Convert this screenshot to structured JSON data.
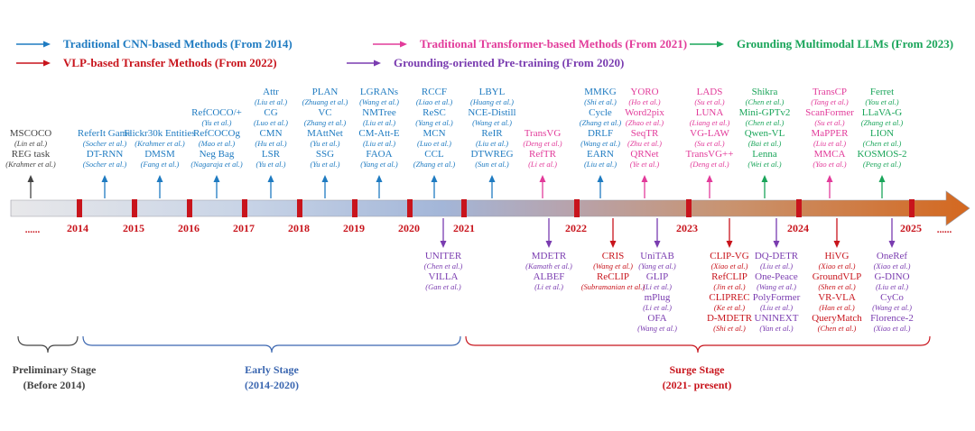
{
  "colors": {
    "cnn": "#1f7bc1",
    "transformer": "#e23b9a",
    "mllm": "#1aa55a",
    "vlp": "#c8141c",
    "pretrain": "#7a3cb0",
    "plain": "#444444",
    "tick": "#c8141c",
    "stage_pre": "#444444",
    "stage_early": "#3a66b0",
    "stage_surge": "#c8141c"
  },
  "legend": [
    {
      "label": "Traditional CNN-based Methods (From 2014)",
      "color_key": "cnn"
    },
    {
      "label": "Traditional Transformer-based Methods (From 2021)",
      "color_key": "transformer"
    },
    {
      "label": "Grounding Multimodal LLMs (From 2023)",
      "color_key": "mllm"
    },
    {
      "label": "VLP-based Transfer Methods (From 2022)",
      "color_key": "vlp"
    },
    {
      "label": "Grounding-oriented Pre-training (From 2020)",
      "color_key": "pretrain"
    }
  ],
  "timeline": {
    "start_dots": "......",
    "end_dots": "......",
    "years": [
      "2014",
      "2015",
      "2016",
      "2017",
      "2018",
      "2019",
      "2020",
      "2021",
      "2022",
      "2023",
      "2024",
      "2025"
    ]
  },
  "above_groups": [
    {
      "color_key": "plain",
      "lines": [
        [
          "MSCOCO",
          "t"
        ],
        [
          "(Lin et al.)",
          "c"
        ],
        [
          "REG task",
          "t"
        ],
        [
          "(Krahmer et al.)",
          "c"
        ]
      ]
    },
    {
      "color_key": "cnn",
      "lines": [
        [
          "ReferIt Game",
          "t"
        ],
        [
          "(Socher et al.)",
          "c"
        ],
        [
          "DT-RNN",
          "t"
        ],
        [
          "(Socher et al.)",
          "c"
        ]
      ]
    },
    {
      "color_key": "cnn",
      "lines": [
        [
          "Flickr30k Entities",
          "t"
        ],
        [
          "(Krahmer et al.)",
          "c"
        ],
        [
          "DMSM",
          "t"
        ],
        [
          "(Fang et al.)",
          "c"
        ]
      ]
    },
    {
      "color_key": "cnn",
      "lines": [
        [
          "RefCOCO/+",
          "t"
        ],
        [
          "(Yu et al.)",
          "c"
        ],
        [
          "RefCOCOg",
          "t"
        ],
        [
          "(Mao et al.)",
          "c"
        ],
        [
          "Neg Bag",
          "t"
        ],
        [
          "(Nagaraja et al.)",
          "c"
        ]
      ]
    },
    {
      "color_key": "cnn",
      "lines": [
        [
          "Attr",
          "t"
        ],
        [
          "(Liu et al.)",
          "c"
        ],
        [
          "CG",
          "t"
        ],
        [
          "(Luo et al.)",
          "c"
        ],
        [
          "CMN",
          "t"
        ],
        [
          "(Hu et al.)",
          "c"
        ],
        [
          "LSR",
          "t"
        ],
        [
          "(Yu et al.)",
          "c"
        ]
      ]
    },
    {
      "color_key": "cnn",
      "lines": [
        [
          "PLAN",
          "t"
        ],
        [
          "(Zhuang et al.)",
          "c"
        ],
        [
          "VC",
          "t"
        ],
        [
          "(Zhang et al.)",
          "c"
        ],
        [
          "MAttNet",
          "t"
        ],
        [
          "(Yu et al.)",
          "c"
        ],
        [
          "SSG",
          "t"
        ],
        [
          "(Yu et al.)",
          "c"
        ]
      ]
    },
    {
      "color_key": "cnn",
      "lines": [
        [
          "LGRANs",
          "t"
        ],
        [
          "(Wang et al.)",
          "c"
        ],
        [
          "NMTree",
          "t"
        ],
        [
          "(Liu et al.)",
          "c"
        ],
        [
          "CM-Att-E",
          "t"
        ],
        [
          "(Liu et al.)",
          "c"
        ],
        [
          "FAOA",
          "t"
        ],
        [
          "(Yang et al.)",
          "c"
        ]
      ]
    },
    {
      "color_key": "cnn",
      "lines": [
        [
          "RCCF",
          "t"
        ],
        [
          "(Liao et al.)",
          "c"
        ],
        [
          "ReSC",
          "t"
        ],
        [
          "(Yang et al.)",
          "c"
        ],
        [
          "MCN",
          "t"
        ],
        [
          "(Luo et al.)",
          "c"
        ],
        [
          "CCL",
          "t"
        ],
        [
          "(Zhang et al.)",
          "c"
        ]
      ]
    },
    {
      "color_key": "cnn",
      "lines": [
        [
          "LBYL",
          "t"
        ],
        [
          "(Huang et al.)",
          "c"
        ],
        [
          "NCE-Distill",
          "t"
        ],
        [
          "(Wang et al.)",
          "c"
        ],
        [
          "ReIR",
          "t"
        ],
        [
          "(Liu et al.)",
          "c"
        ],
        [
          "DTWREG",
          "t"
        ],
        [
          "(Sun et al.)",
          "c"
        ]
      ]
    },
    {
      "color_key": "transformer",
      "lines": [
        [
          "TransVG",
          "t"
        ],
        [
          "(Deng et al.)",
          "c"
        ],
        [
          "RefTR",
          "t"
        ],
        [
          "(Li et al.)",
          "c"
        ]
      ]
    },
    {
      "color_key": "cnn",
      "lines": [
        [
          "MMKG",
          "t"
        ],
        [
          "(Shi et al.)",
          "c"
        ],
        [
          "Cycle",
          "t"
        ],
        [
          "(Zhang et al.)",
          "c"
        ],
        [
          "DRLF",
          "t"
        ],
        [
          "(Wang et al.)",
          "c"
        ],
        [
          "EARN",
          "t"
        ],
        [
          "(Liu et al.)",
          "c"
        ]
      ]
    },
    {
      "color_key": "transformer",
      "lines": [
        [
          "YORO",
          "t"
        ],
        [
          "(Ho et al.)",
          "c"
        ],
        [
          "Word2pix",
          "t"
        ],
        [
          "(Zhao et al.)",
          "c"
        ],
        [
          "SeqTR",
          "t"
        ],
        [
          "(Zhu et al.)",
          "c"
        ],
        [
          "QRNet",
          "t"
        ],
        [
          "(Ye et al.)",
          "c"
        ]
      ]
    },
    {
      "color_key": "transformer",
      "lines": [
        [
          "LADS",
          "t"
        ],
        [
          "(Su et al.)",
          "c"
        ],
        [
          "LUNA",
          "t"
        ],
        [
          "(Liang et al.)",
          "c"
        ],
        [
          "VG-LAW",
          "t"
        ],
        [
          "(Su et al.)",
          "c"
        ],
        [
          "TransVG++",
          "t"
        ],
        [
          "(Deng et al.)",
          "c"
        ]
      ]
    },
    {
      "color_key": "mllm",
      "lines": [
        [
          "Shikra",
          "t"
        ],
        [
          "(Chen et al.)",
          "c"
        ],
        [
          "Mini-GPTv2",
          "t"
        ],
        [
          "(Chen et al.)",
          "c"
        ],
        [
          "Qwen-VL",
          "t"
        ],
        [
          "(Bai et al.)",
          "c"
        ],
        [
          "Lenna",
          "t"
        ],
        [
          "(Wei et al.)",
          "c"
        ]
      ]
    },
    {
      "color_key": "transformer",
      "lines": [
        [
          "TransCP",
          "t"
        ],
        [
          "(Tang et al.)",
          "c"
        ],
        [
          "ScanFormer",
          "t"
        ],
        [
          "(Su et al.)",
          "c"
        ],
        [
          "MaPPER",
          "t"
        ],
        [
          "(Liu et al.)",
          "c"
        ],
        [
          "MMCA",
          "t"
        ],
        [
          "(Yao et al.)",
          "c"
        ]
      ]
    },
    {
      "color_key": "mllm",
      "lines": [
        [
          "Ferret",
          "t"
        ],
        [
          "(You et al.)",
          "c"
        ],
        [
          "LLaVA-G",
          "t"
        ],
        [
          "(Zhang et al.)",
          "c"
        ],
        [
          "LION",
          "t"
        ],
        [
          "(Chen et al.)",
          "c"
        ],
        [
          "KOSMOS-2",
          "t"
        ],
        [
          "(Peng et al.)",
          "c"
        ]
      ]
    }
  ],
  "below_groups": [
    {
      "color_key": "pretrain",
      "lines": [
        [
          "UNITER",
          "t"
        ],
        [
          "(Chen et al.)",
          "c"
        ],
        [
          "VILLA",
          "t"
        ],
        [
          "(Gan et al.)",
          "c"
        ]
      ]
    },
    {
      "color_key": "pretrain",
      "lines": [
        [
          "MDETR",
          "t"
        ],
        [
          "(Kamath et al.)",
          "c"
        ],
        [
          "ALBEF",
          "t"
        ],
        [
          "(Li et al.)",
          "c"
        ]
      ]
    },
    {
      "color_key": "vlp",
      "lines": [
        [
          "CRIS",
          "t"
        ],
        [
          "(Wang et al.)",
          "c"
        ],
        [
          "ReCLIP",
          "t"
        ],
        [
          "(Subramanian et al.)",
          "c"
        ]
      ]
    },
    {
      "color_key": "pretrain",
      "lines": [
        [
          "UniTAB",
          "t"
        ],
        [
          "(Yang et al.)",
          "c"
        ],
        [
          "GLIP",
          "t"
        ],
        [
          "(Li et al.)",
          "c"
        ],
        [
          "mPlug",
          "t"
        ],
        [
          "(Li et al.)",
          "c"
        ],
        [
          "OFA",
          "t"
        ],
        [
          "(Wang et al.)",
          "c"
        ]
      ]
    },
    {
      "color_key": "vlp",
      "lines": [
        [
          "CLIP-VG",
          "t"
        ],
        [
          "(Xiao et al.)",
          "c"
        ],
        [
          "RefCLIP",
          "t"
        ],
        [
          "(Jin et al.)",
          "c"
        ],
        [
          "CLIPREC",
          "t"
        ],
        [
          "(Ke et al.)",
          "c"
        ],
        [
          "D-MDETR",
          "t"
        ],
        [
          "(Shi et al.)",
          "c"
        ]
      ]
    },
    {
      "color_key": "pretrain",
      "lines": [
        [
          "DQ-DETR",
          "t"
        ],
        [
          "(Liu et al.)",
          "c"
        ],
        [
          "One-Peace",
          "t"
        ],
        [
          "(Wang et al.)",
          "c"
        ],
        [
          "PolyFormer",
          "t"
        ],
        [
          "(Liu et al.)",
          "c"
        ],
        [
          "UNINEXT",
          "t"
        ],
        [
          "(Yan et al.)",
          "c"
        ]
      ]
    },
    {
      "color_key": "vlp",
      "lines": [
        [
          "HiVG",
          "t"
        ],
        [
          "(Xiao et al.)",
          "c"
        ],
        [
          "GroundVLP",
          "t"
        ],
        [
          "(Shen et al.)",
          "c"
        ],
        [
          "VR-VLA",
          "t"
        ],
        [
          "(Han et al.)",
          "c"
        ],
        [
          "QueryMatch",
          "t"
        ],
        [
          "(Chen et al.)",
          "c"
        ]
      ]
    },
    {
      "color_key": "pretrain",
      "lines": [
        [
          "OneRef",
          "t"
        ],
        [
          "(Xiao et al.)",
          "c"
        ],
        [
          "G-DINO",
          "t"
        ],
        [
          "(Liu et al.)",
          "c"
        ],
        [
          "CyCo",
          "t"
        ],
        [
          "(Wang et al.)",
          "c"
        ],
        [
          "Florence-2",
          "t"
        ],
        [
          "(Xiao et al.)",
          "c"
        ]
      ]
    }
  ],
  "stages": [
    {
      "name": "Preliminary Stage",
      "period": "(Before 2014)",
      "color_key": "stage_pre"
    },
    {
      "name": "Early Stage",
      "period": "(2014-2020)",
      "color_key": "stage_early"
    },
    {
      "name": "Surge Stage",
      "period": "(2021- present)",
      "color_key": "stage_surge"
    }
  ]
}
